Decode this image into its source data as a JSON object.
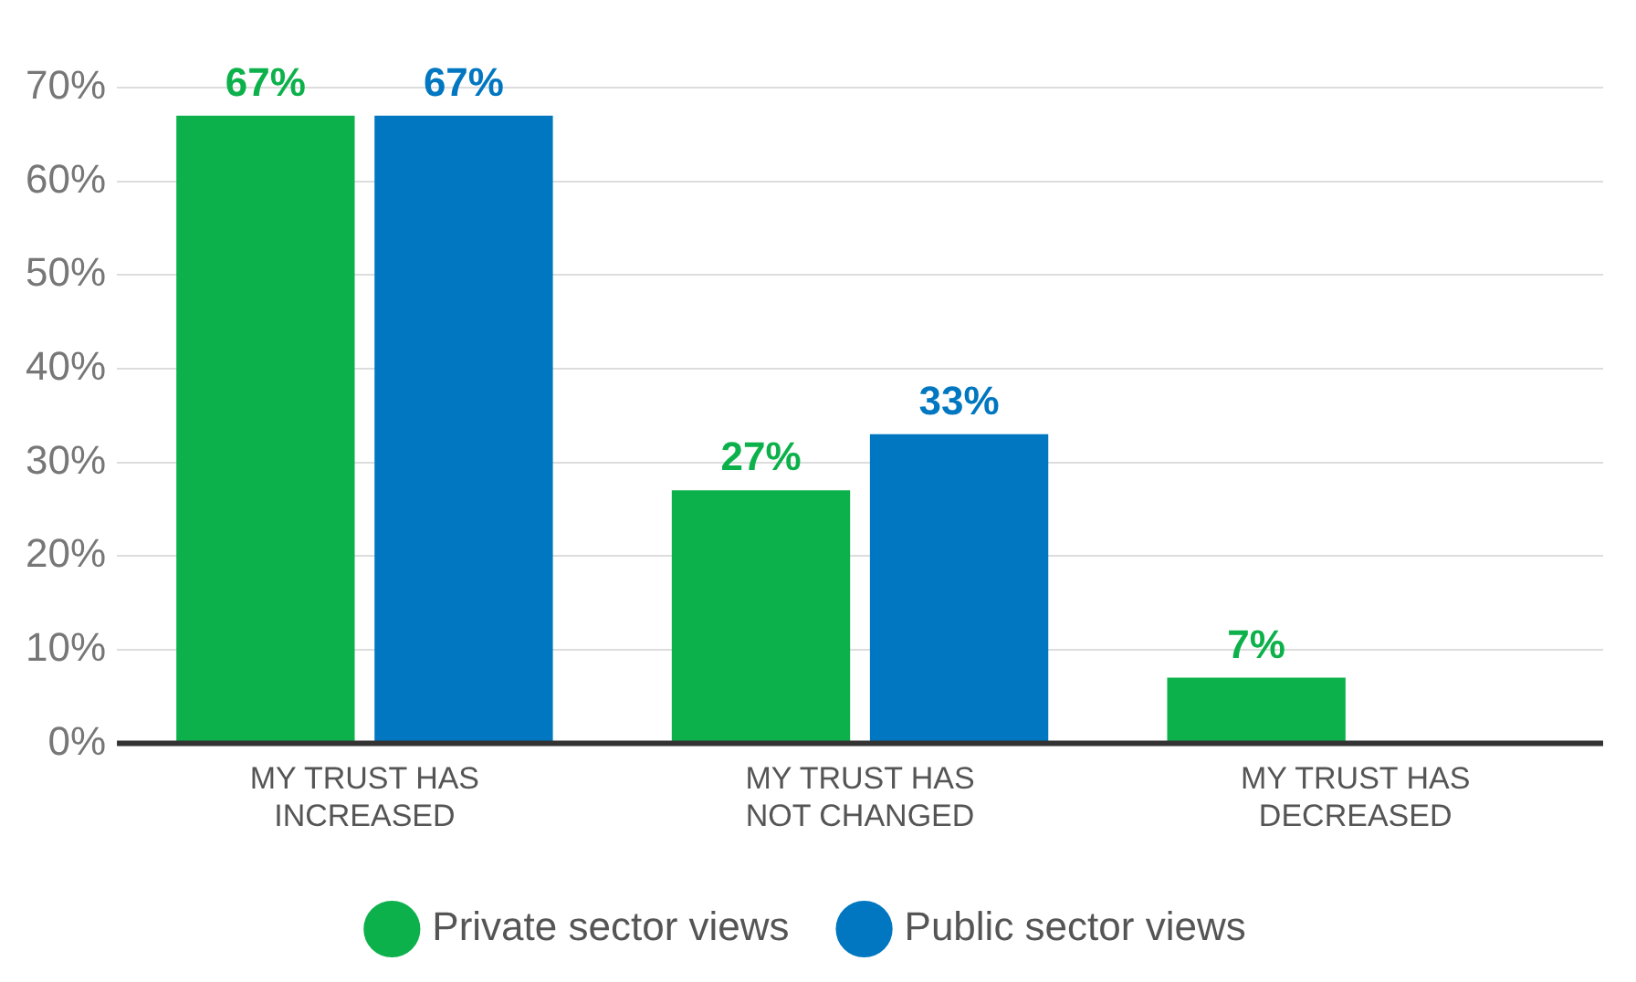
{
  "chart_data": {
    "type": "bar",
    "categories": [
      "MY TRUST HAS INCREASED",
      "MY TRUST HAS NOT CHANGED",
      "MY TRUST HAS DECREASED"
    ],
    "series": [
      {
        "name": "Private sector views",
        "color": "#0db14b",
        "values": [
          67,
          27,
          7
        ],
        "value_labels": [
          "67%",
          "27%",
          "7%"
        ]
      },
      {
        "name": "Public sector views",
        "color": "#0077c0",
        "values": [
          67,
          33,
          null
        ],
        "value_labels": [
          "67%",
          "33%",
          null
        ]
      }
    ],
    "ylim": [
      0,
      70
    ],
    "yticks": [
      {
        "value": 0,
        "label": "0%"
      },
      {
        "value": 10,
        "label": "10%"
      },
      {
        "value": 20,
        "label": "20%"
      },
      {
        "value": 30,
        "label": "30%"
      },
      {
        "value": 40,
        "label": "40%"
      },
      {
        "value": 50,
        "label": "50%"
      },
      {
        "value": 60,
        "label": "60%"
      },
      {
        "value": 70,
        "label": "70%"
      }
    ],
    "grid": "y",
    "legend": "bottom"
  }
}
